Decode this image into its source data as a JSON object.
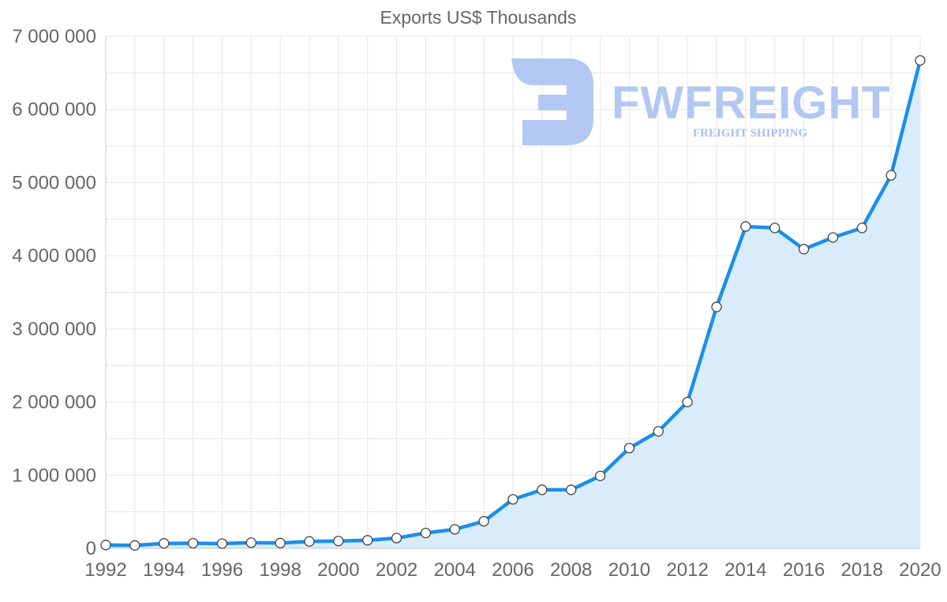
{
  "colors": {
    "line": "#1a8fec",
    "area": "#d9ecfc",
    "watermark": "#b2c8f2",
    "watermark_sub": "#a8bff0"
  },
  "watermark": {
    "logo_icon": "fw-logo-icon",
    "brand": "FWFREIGHT",
    "tagline": "FREIGHT SHIPPING"
  },
  "chart_data": {
    "type": "area",
    "title": "Exports US$ Thousands",
    "xlabel": "",
    "ylabel": "",
    "x": [
      1992,
      1993,
      1994,
      1995,
      1996,
      1997,
      1998,
      1999,
      2000,
      2001,
      2002,
      2003,
      2004,
      2005,
      2006,
      2007,
      2008,
      2009,
      2010,
      2011,
      2012,
      2013,
      2014,
      2015,
      2016,
      2017,
      2018,
      2019,
      2020
    ],
    "series": [
      {
        "name": "Exports US$ Thousands",
        "values": [
          45000,
          40000,
          68000,
          70000,
          65000,
          78000,
          72000,
          95000,
          100000,
          110000,
          140000,
          210000,
          260000,
          370000,
          670000,
          800000,
          800000,
          990000,
          1370000,
          1600000,
          2000000,
          3300000,
          4400000,
          4380000,
          4090000,
          4250000,
          4380000,
          5100000,
          6670000
        ]
      }
    ],
    "ylim": [
      0,
      7000000
    ],
    "yticks": [
      0,
      1000000,
      2000000,
      3000000,
      4000000,
      5000000,
      6000000,
      7000000
    ],
    "ytick_labels": [
      "0",
      "1 000 000",
      "2 000 000",
      "3 000 000",
      "4 000 000",
      "5 000 000",
      "6 000 000",
      "7 000 000"
    ],
    "xticks": [
      1992,
      1994,
      1996,
      1998,
      2000,
      2002,
      2004,
      2006,
      2008,
      2010,
      2012,
      2014,
      2016,
      2018,
      2020
    ],
    "xtick_labels": [
      "1992",
      "1994",
      "1996",
      "1998",
      "2000",
      "2002",
      "2004",
      "2006",
      "2008",
      "2010",
      "2012",
      "2014",
      "2016",
      "2018",
      "2020"
    ],
    "xlim": [
      1992,
      2020
    ],
    "grid": true,
    "legend": "none"
  }
}
